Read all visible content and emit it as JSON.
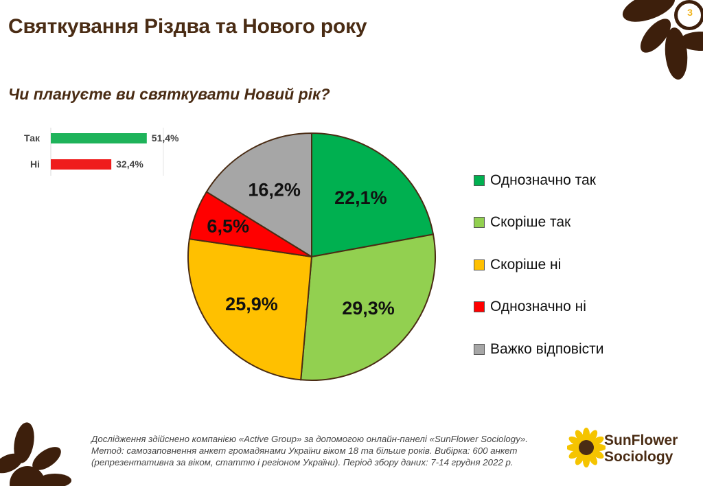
{
  "header": {
    "title": "Святкування Різдва та Нового року",
    "page_number": "3"
  },
  "question": "Чи плануєте ви святкувати Новий рік?",
  "colors": {
    "brand_brown": "#4a2c14",
    "accent_yellow": "#f0b31b"
  },
  "chart_data": [
    {
      "type": "bar",
      "orientation": "horizontal",
      "categories": [
        "Так",
        "Ні"
      ],
      "values": [
        51.4,
        32.4
      ],
      "value_labels": [
        "51,4%",
        "32,4%"
      ],
      "colors": [
        "#1eb35a",
        "#ef1c1c"
      ],
      "xlim": [
        0,
        100
      ]
    },
    {
      "type": "pie",
      "categories": [
        "Однозначно так",
        "Скоріше так",
        "Скоріше ні",
        "Однозначно ні",
        "Важко відповісти"
      ],
      "values": [
        22.1,
        29.3,
        25.9,
        6.5,
        16.2
      ],
      "value_labels": [
        "22,1%",
        "29,3%",
        "25,9%",
        "6,5%",
        "16,2%"
      ],
      "colors": [
        "#00b050",
        "#92d050",
        "#ffc000",
        "#ff0000",
        "#a6a6a6"
      ],
      "legend_position": "right"
    }
  ],
  "footer": {
    "note": "Дослідження здійснено компанією «Active Group» за допомогою онлайн-панелі «SunFlower Sociology». Метод: самозаповнення анкет громадянами України віком 18 та більше років. Вибірка: 600 анкет (репрезентативна за віком, статтю і регіоном України). Період збору даних: 7-14 грудня 2022 р.",
    "logo_line1": "SunFlower",
    "logo_line2": "Sociology"
  }
}
